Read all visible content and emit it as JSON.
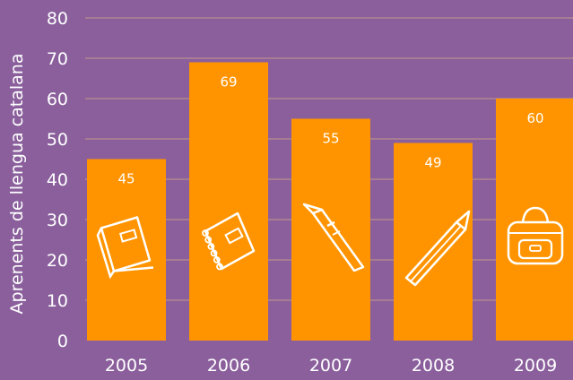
{
  "chart_data": {
    "type": "bar",
    "categories": [
      "2005",
      "2006",
      "2007",
      "2008",
      "2009"
    ],
    "values": [
      45,
      69,
      55,
      49,
      60
    ],
    "title": "",
    "xlabel": "",
    "ylabel": "Aprenents de llengua catalana",
    "ylim": [
      0,
      80
    ],
    "yticks": [
      0,
      10,
      20,
      30,
      40,
      50,
      60,
      70,
      80
    ],
    "data_labels": [
      "45",
      "69",
      "55",
      "49",
      "60"
    ],
    "grid": "horizontal",
    "legend": "none",
    "bar_icons": [
      "notebook-icon",
      "spiral-notebook-icon",
      "fountain-pen-icon",
      "pencil-icon",
      "school-bag-icon"
    ]
  },
  "colors": {
    "background": "#8a5f9c",
    "bar": "#ff9400",
    "gridline": "#c79a8a",
    "axis_text": "#ffffff",
    "label_text": "#ffffff",
    "icon_stroke": "#ffffff"
  }
}
